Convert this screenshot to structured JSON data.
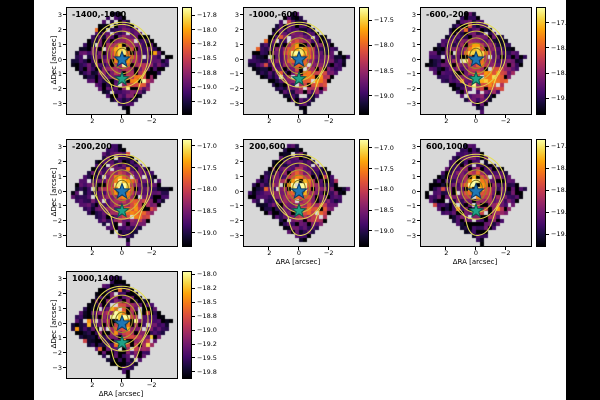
{
  "window": {
    "background_color": "#000000",
    "figure_background_color": "#ffffff"
  },
  "figure": {
    "axes_background_color": "#d8d8d8",
    "colormap": "inferno",
    "contour_colors": [
      "#80701e",
      "#9b8a26",
      "#b5a330",
      "#cfbe3c",
      "#e0d44a"
    ],
    "outer_contour_color": "#e6de55",
    "blue_star_color": "#1f77b4",
    "blue_star_edge_color": "#0d3a66",
    "green_star_color": "#1fa187",
    "green_star_edge_color": "#0e5c4a",
    "xlabel": "ΔRA [arcsec]",
    "ylabel": "ΔDec [arcsec]"
  },
  "chart_data": {
    "type": "heatmap",
    "description": "Seven velocity-channel surface-brightness maps (pixelated inferno heatmaps on grey axes) with yellow contour overlays, a blue star marker at (0,0) and a green star marker at (0,-1.3). Each panel has its own colorbar of log surface brightness.",
    "axes": {
      "xlabel": "ΔRA [arcsec]",
      "ylabel": "ΔDec [arcsec]",
      "x_range": [
        3.7,
        -3.7
      ],
      "y_range": [
        -3.65,
        3.45
      ],
      "x_ticks": [
        {
          "v": 2,
          "label": "2"
        },
        {
          "v": 0,
          "label": "0"
        },
        {
          "v": -2,
          "label": "−2"
        }
      ],
      "y_ticks": [
        {
          "v": 3,
          "label": "3"
        },
        {
          "v": 2,
          "label": "2"
        },
        {
          "v": 1,
          "label": "1"
        },
        {
          "v": 0,
          "label": "0"
        },
        {
          "v": -1,
          "label": "−1"
        },
        {
          "v": -2,
          "label": "−2"
        },
        {
          "v": -3,
          "label": "−3"
        }
      ]
    },
    "markers": [
      {
        "name": "blue-star",
        "x": 0,
        "y": 0
      },
      {
        "name": "green-star",
        "x": 0,
        "y": -1.3
      }
    ],
    "panels": [
      {
        "title": "-1400,-1000",
        "row": 0,
        "col": 0,
        "show_xlabel": false,
        "show_ylabel": true,
        "colorbar": {
          "vmin": -19.45,
          "vmax": -17.62,
          "ticks": [
            {
              "v": -17.75,
              "label": "−17.8"
            },
            {
              "v": -18.0,
              "label": "−18.0"
            },
            {
              "v": -18.25,
              "label": "−18.2"
            },
            {
              "v": -18.5,
              "label": "−18.5"
            },
            {
              "v": -18.75,
              "label": "−18.8"
            },
            {
              "v": -19.0,
              "label": "−19.0"
            },
            {
              "v": -19.25,
              "label": "−19.2"
            }
          ]
        },
        "render": {
          "seed": 101,
          "amp_center": 1.3,
          "amp_south": 0.75,
          "black_frac": 0.2,
          "speckle": 0.03
        }
      },
      {
        "title": "-1000,-600",
        "row": 0,
        "col": 1,
        "show_xlabel": false,
        "show_ylabel": false,
        "colorbar": {
          "vmin": -19.35,
          "vmax": -17.25,
          "ticks": [
            {
              "v": -17.5,
              "label": "−17.5"
            },
            {
              "v": -18.0,
              "label": "−18.0"
            },
            {
              "v": -18.5,
              "label": "−18.5"
            },
            {
              "v": -19.0,
              "label": "−19.0"
            }
          ]
        },
        "render": {
          "seed": 202,
          "amp_center": 1.6,
          "amp_south": 1.1,
          "black_frac": 0.18,
          "speckle": 0.02
        }
      },
      {
        "title": "-600,-200",
        "row": 0,
        "col": 2,
        "show_xlabel": false,
        "show_ylabel": false,
        "colorbar": {
          "vmin": -19.3,
          "vmax": -17.2,
          "ticks": [
            {
              "v": -17.5,
              "label": "−17.5"
            },
            {
              "v": -18.0,
              "label": "−18.0"
            },
            {
              "v": -18.5,
              "label": "−18.5"
            },
            {
              "v": -19.0,
              "label": "−19.0"
            }
          ]
        },
        "render": {
          "seed": 303,
          "amp_center": 1.5,
          "amp_south": 1.35,
          "black_frac": 0.16,
          "speckle": 0.02
        }
      },
      {
        "title": "-200,200",
        "row": 1,
        "col": 0,
        "show_xlabel": false,
        "show_ylabel": true,
        "colorbar": {
          "vmin": -19.3,
          "vmax": -16.85,
          "ticks": [
            {
              "v": -17.0,
              "label": "−17.0"
            },
            {
              "v": -17.5,
              "label": "−17.5"
            },
            {
              "v": -18.0,
              "label": "−18.0"
            },
            {
              "v": -18.5,
              "label": "−18.5"
            },
            {
              "v": -19.0,
              "label": "−19.0"
            }
          ]
        },
        "render": {
          "seed": 404,
          "amp_center": 2.0,
          "amp_south": 1.2,
          "black_frac": 0.14,
          "speckle": 0.02
        }
      },
      {
        "title": "200,600",
        "row": 1,
        "col": 1,
        "show_xlabel": true,
        "show_ylabel": false,
        "colorbar": {
          "vmin": -19.35,
          "vmax": -16.8,
          "ticks": [
            {
              "v": -17.0,
              "label": "−17.0"
            },
            {
              "v": -17.5,
              "label": "−17.5"
            },
            {
              "v": -18.0,
              "label": "−18.0"
            },
            {
              "v": -18.5,
              "label": "−18.5"
            },
            {
              "v": -19.0,
              "label": "−19.0"
            }
          ]
        },
        "render": {
          "seed": 505,
          "amp_center": 2.2,
          "amp_south": 0.95,
          "black_frac": 0.16,
          "speckle": 0.02
        }
      },
      {
        "title": "600,1000",
        "row": 1,
        "col": 2,
        "show_xlabel": true,
        "show_ylabel": false,
        "colorbar": {
          "vmin": -19.75,
          "vmax": -17.35,
          "ticks": [
            {
              "v": -17.5,
              "label": "−17.5"
            },
            {
              "v": -18.0,
              "label": "−18.0"
            },
            {
              "v": -18.5,
              "label": "−18.5"
            },
            {
              "v": -19.0,
              "label": "−19.0"
            },
            {
              "v": -19.5,
              "label": "−19.5"
            }
          ]
        },
        "render": {
          "seed": 606,
          "amp_center": 2.0,
          "amp_south": 0.65,
          "black_frac": 0.2,
          "speckle": 0.02
        }
      },
      {
        "title": "1000,1400",
        "row": 2,
        "col": 0,
        "show_xlabel": true,
        "show_ylabel": true,
        "colorbar": {
          "vmin": -19.85,
          "vmax": -17.95,
          "ticks": [
            {
              "v": -18.0,
              "label": "−18.0"
            },
            {
              "v": -18.25,
              "label": "−18.2"
            },
            {
              "v": -18.5,
              "label": "−18.5"
            },
            {
              "v": -18.75,
              "label": "−18.8"
            },
            {
              "v": -19.0,
              "label": "−19.0"
            },
            {
              "v": -19.25,
              "label": "−19.2"
            },
            {
              "v": -19.5,
              "label": "−19.5"
            },
            {
              "v": -19.75,
              "label": "−19.8"
            }
          ]
        },
        "render": {
          "seed": 707,
          "amp_center": 1.2,
          "amp_south": 0.55,
          "black_frac": 0.26,
          "speckle": 0.09
        }
      }
    ]
  }
}
